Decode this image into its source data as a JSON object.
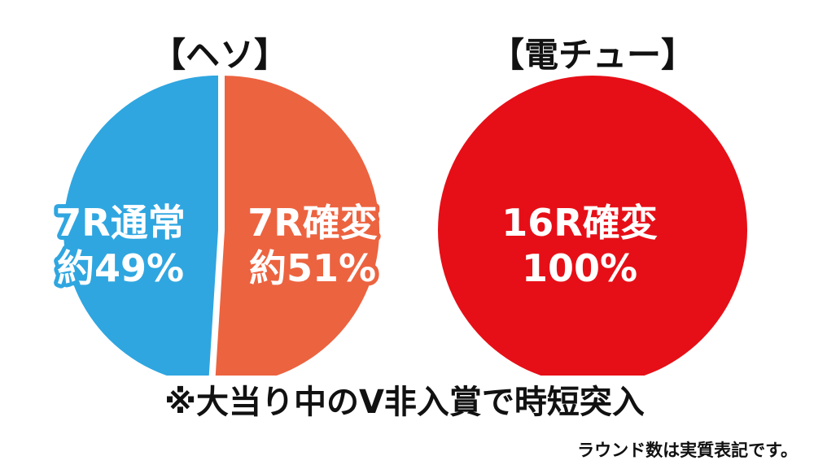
{
  "chart_data": [
    {
      "type": "pie",
      "title": "【ヘソ】",
      "slices": [
        {
          "label": "7R通常",
          "value_text": "約49%",
          "value": 49,
          "color": "#2fa6e0"
        },
        {
          "label": "7R確変",
          "value_text": "約51%",
          "value": 51,
          "color": "#ec6340"
        }
      ]
    },
    {
      "type": "pie",
      "title": "【電チュー】",
      "slices": [
        {
          "label": "16R確変",
          "value_text": "100%",
          "value": 100,
          "color": "#e60f17"
        }
      ]
    }
  ],
  "footnote": "※大当り中のV非入賞で時短突入",
  "source_note": "ラウンド数は実質表記です。"
}
